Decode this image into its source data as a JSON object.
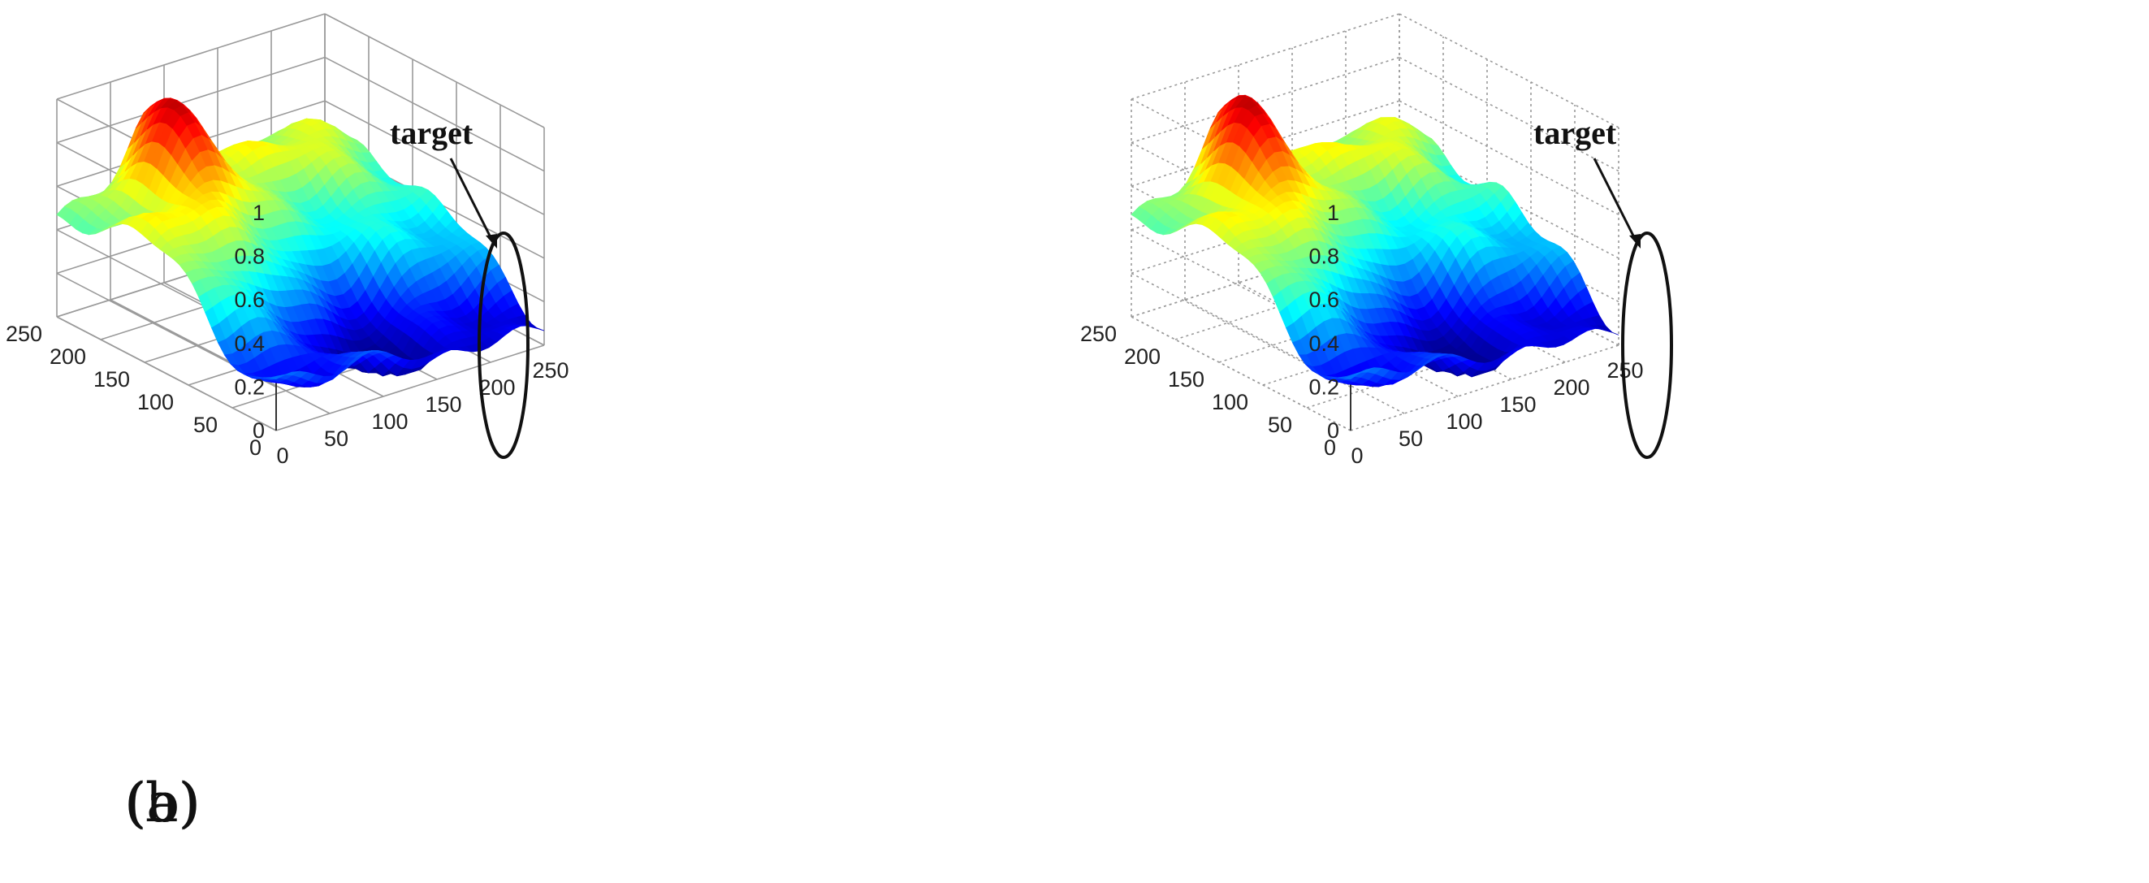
{
  "chart_data": [
    {
      "type": "surface3d",
      "panel_label": "(a)",
      "zticks": [
        "0",
        "0.2",
        "0.4",
        "0.6",
        "0.8",
        "1"
      ],
      "yticks": [
        "0",
        "50",
        "100",
        "150",
        "200",
        "250"
      ],
      "xticks": [
        "0",
        "50",
        "100",
        "150",
        "200",
        "250"
      ],
      "zlim": [
        0,
        1
      ],
      "xlim": [
        0,
        250
      ],
      "ylim": [
        0,
        250
      ],
      "grid": true,
      "colormap": "jet",
      "annotation": {
        "text": "target",
        "marker": "ellipse"
      }
    },
    {
      "type": "surface3d",
      "panel_label": "(b)",
      "zticks": [
        "0",
        "0.2",
        "0.4",
        "0.6",
        "0.8",
        "1"
      ],
      "yticks": [
        "0",
        "50",
        "100",
        "150",
        "200",
        "250"
      ],
      "xticks": [
        "0",
        "50",
        "100",
        "150",
        "200",
        "250"
      ],
      "zlim": [
        0,
        1
      ],
      "xlim": [
        0,
        250
      ],
      "ylim": [
        0,
        250
      ],
      "grid": true,
      "colormap": "jet",
      "annotation": {
        "text": "target",
        "marker": "ellipse"
      }
    }
  ]
}
